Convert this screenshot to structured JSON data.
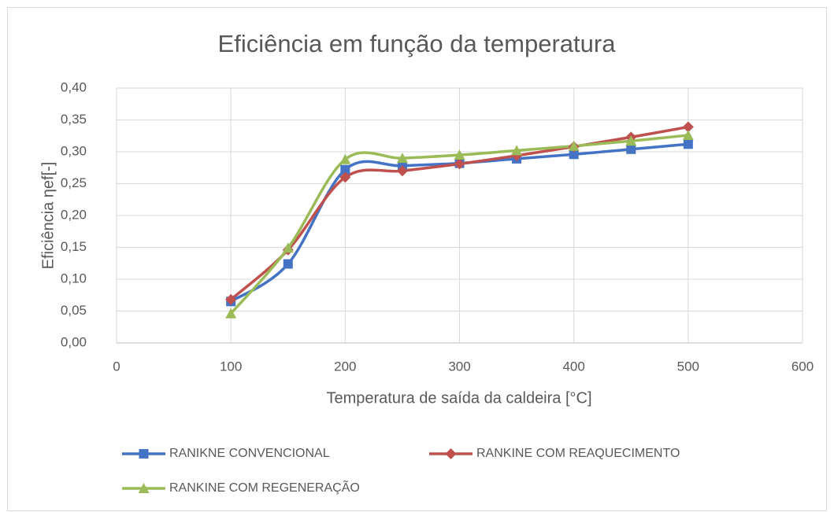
{
  "chart_data": {
    "type": "line",
    "title": "Eficiência em função da temperatura",
    "x_label": "Temperatura de saída da caldeira [°C]",
    "y_label": "Eficiência ηef[-]",
    "x": [
      100,
      150,
      200,
      250,
      300,
      350,
      400,
      450,
      500
    ],
    "series": [
      {
        "name": "RANIKNE CONVENCIONAL",
        "color": "#4472c4",
        "marker": "square",
        "values": [
          0.065,
          0.124,
          0.272,
          0.278,
          0.282,
          0.289,
          0.296,
          0.304,
          0.312
        ]
      },
      {
        "name": "RANKINE COM REAQUECIMENTO",
        "color": "#c0504d",
        "marker": "diamond",
        "values": [
          0.068,
          0.146,
          0.26,
          0.27,
          0.281,
          0.294,
          0.308,
          0.323,
          0.339
        ]
      },
      {
        "name": "RANKINE COM REGENERAÇÃO",
        "color": "#9bbb59",
        "marker": "triangle",
        "values": [
          0.046,
          0.149,
          0.288,
          0.29,
          0.295,
          0.302,
          0.309,
          0.317,
          0.326
        ]
      }
    ],
    "xlim": [
      0,
      600
    ],
    "xticks": [
      0,
      100,
      200,
      300,
      400,
      500,
      600
    ],
    "ylim": [
      0,
      0.4
    ],
    "yticks": [
      {
        "value": 0,
        "label": "0,00"
      },
      {
        "value": 0.05,
        "label": "0,05"
      },
      {
        "value": 0.1,
        "label": "0,10"
      },
      {
        "value": 0.15,
        "label": "0,15"
      },
      {
        "value": 0.2,
        "label": "0,20"
      },
      {
        "value": 0.25,
        "label": "0,25"
      },
      {
        "value": 0.3,
        "label": "0,30"
      },
      {
        "value": 0.35,
        "label": "0,35"
      },
      {
        "value": 0.4,
        "label": "0,40"
      }
    ],
    "grid": true,
    "smooth": true,
    "legend": "bottom"
  }
}
